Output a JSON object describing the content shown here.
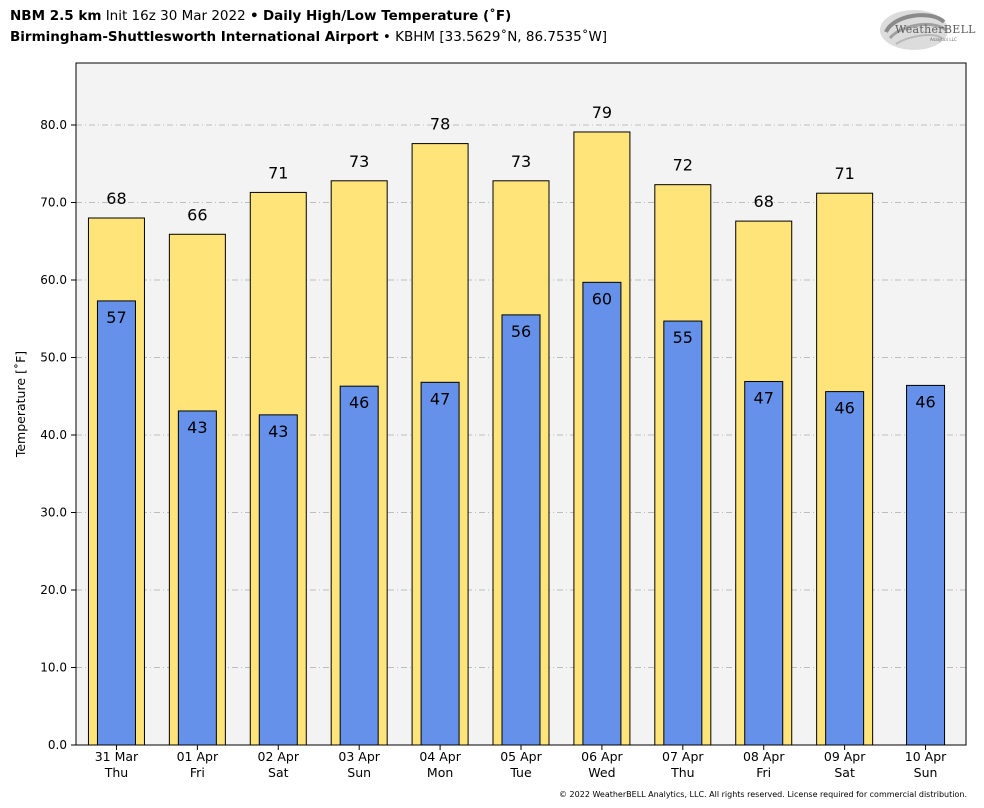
{
  "header": {
    "model": "NBM 2.5 km",
    "init": "Init 16z 30 Mar 2022",
    "separator": "•",
    "product": "Daily High/Low Temperature (˚F)",
    "station_name": "Birmingham-Shuttlesworth International Airport",
    "station_info": "KBHM [33.5629˚N, 86.7535˚W]"
  },
  "logo": {
    "text": "WeatherBELL",
    "sub": "Analytics LLC"
  },
  "footer": {
    "copyright": "© 2022 WeatherBELL Analytics, LLC. All rights reserved. License required for commercial distribution."
  },
  "colors": {
    "high": "#ffe47a",
    "low": "#6591ea",
    "plot_bg": "#f3f3f3",
    "grid": "#bdbdbd"
  },
  "chart_data": {
    "type": "bar",
    "ylabel": "Temperature [˚F]",
    "ylim": [
      0,
      88
    ],
    "yticks": [
      0,
      10,
      20,
      30,
      40,
      50,
      60,
      70,
      80
    ],
    "ytick_labels": [
      "0.0",
      "10.0",
      "20.0",
      "30.0",
      "40.0",
      "50.0",
      "60.0",
      "70.0",
      "80.0"
    ],
    "grid": true,
    "categories": [
      [
        "31 Mar",
        "Thu"
      ],
      [
        "01 Apr",
        "Fri"
      ],
      [
        "02 Apr",
        "Sat"
      ],
      [
        "03 Apr",
        "Sun"
      ],
      [
        "04 Apr",
        "Mon"
      ],
      [
        "05 Apr",
        "Tue"
      ],
      [
        "06 Apr",
        "Wed"
      ],
      [
        "07 Apr",
        "Thu"
      ],
      [
        "08 Apr",
        "Fri"
      ],
      [
        "09 Apr",
        "Sat"
      ],
      [
        "10 Apr",
        "Sun"
      ]
    ],
    "series": [
      {
        "values": [
          68.0,
          65.9,
          71.3,
          72.8,
          77.6,
          72.8,
          79.1,
          72.3,
          67.6,
          71.2,
          null
        ],
        "labels": [
          "68",
          "66",
          "71",
          "73",
          "78",
          "73",
          "79",
          "72",
          "68",
          "71",
          null
        ]
      },
      {
        "values": [
          57.3,
          43.1,
          42.6,
          46.3,
          46.8,
          55.5,
          59.7,
          54.7,
          46.9,
          45.6,
          46.4
        ],
        "labels": [
          "57",
          "43",
          "43",
          "46",
          "47",
          "56",
          "60",
          "55",
          "47",
          "46",
          "46"
        ]
      }
    ]
  }
}
